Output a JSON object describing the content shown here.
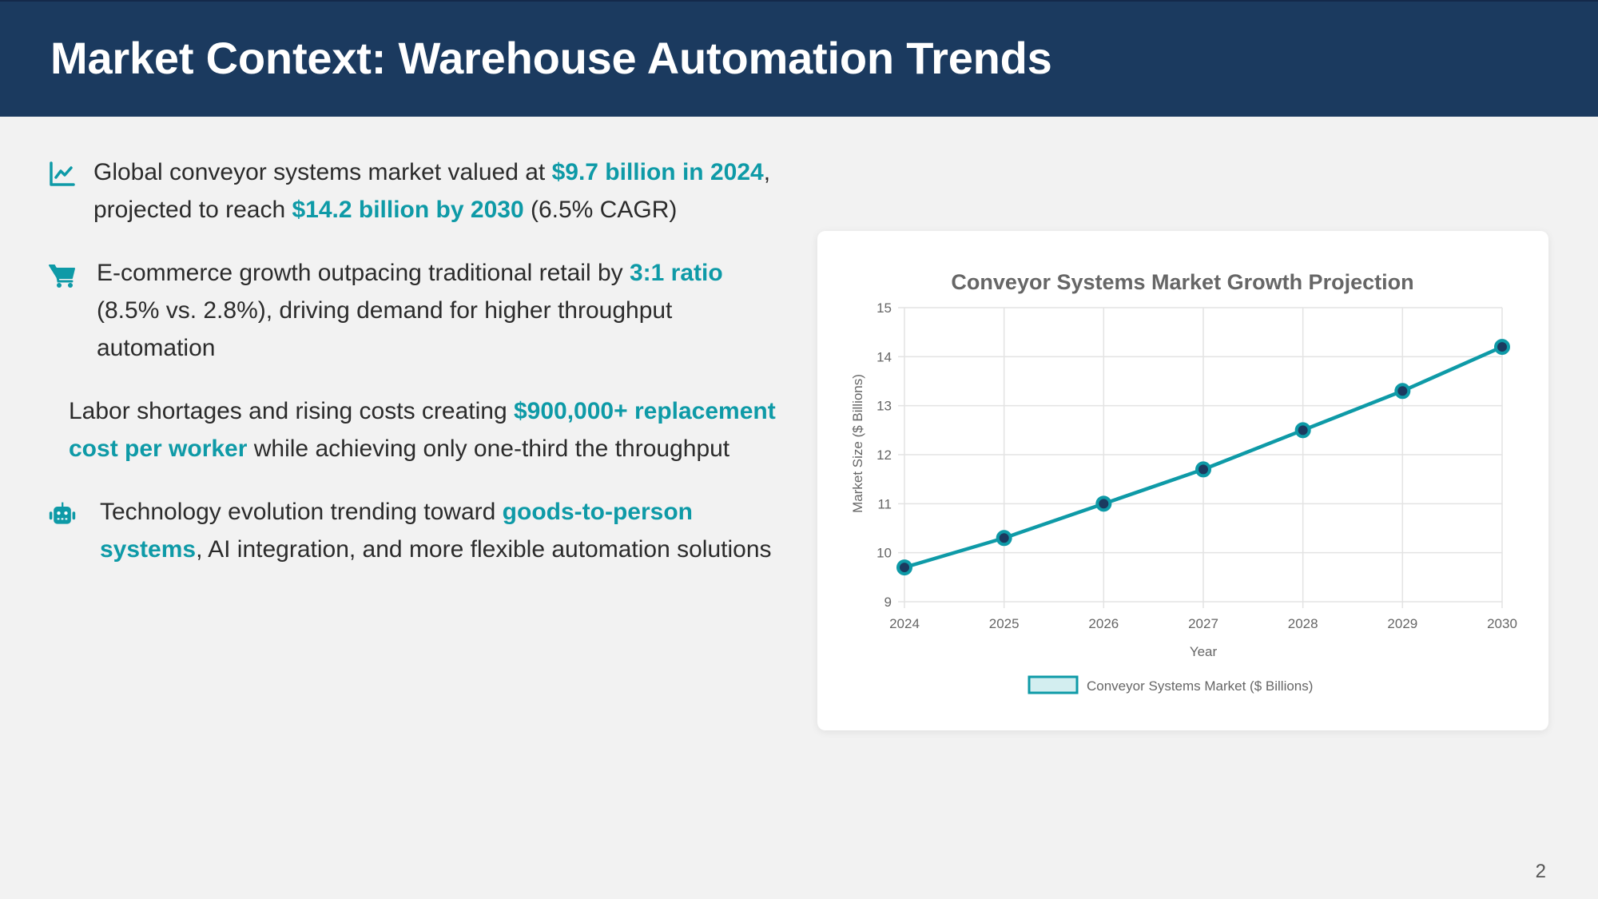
{
  "header": {
    "title": "Market Context: Warehouse Automation Trends"
  },
  "colors": {
    "header_bg": "#1b3a5f",
    "accent": "#0e9aa7",
    "point_fill": "#1b3a5f",
    "legend_fill": "#d3eef0"
  },
  "bullets": [
    {
      "icon": "chart-line-icon",
      "parts": [
        {
          "text": "Global conveyor systems market valued at ",
          "highlight": false
        },
        {
          "text": "$9.7 billion in 2024",
          "highlight": true
        },
        {
          "text": ", projected to reach ",
          "highlight": false
        },
        {
          "text": "$14.2 billion by 2030",
          "highlight": true
        },
        {
          "text": " (6.5% CAGR)",
          "highlight": false
        }
      ]
    },
    {
      "icon": "shopping-cart-icon",
      "parts": [
        {
          "text": "E-commerce growth outpacing traditional retail by ",
          "highlight": false
        },
        {
          "text": "3:1 ratio",
          "highlight": true
        },
        {
          "text": " (8.5% vs. 2.8%), driving demand for higher throughput automation",
          "highlight": false
        }
      ]
    },
    {
      "icon": null,
      "parts": [
        {
          "text": "Labor shortages and rising costs creating ",
          "highlight": false
        },
        {
          "text": "$900,000+ replacement cost per worker",
          "highlight": true
        },
        {
          "text": " while achieving only one-third the throughput",
          "highlight": false
        }
      ]
    },
    {
      "icon": "robot-icon",
      "parts": [
        {
          "text": "Technology evolution trending toward ",
          "highlight": false
        },
        {
          "text": "goods-to-person systems",
          "highlight": true
        },
        {
          "text": ", AI integration, and more flexible automation solutions",
          "highlight": false
        }
      ]
    }
  ],
  "chart_data": {
    "type": "line",
    "title": "Conveyor Systems Market Growth Projection",
    "xlabel": "Year",
    "ylabel": "Market Size ($ Billions)",
    "categories": [
      "2024",
      "2025",
      "2026",
      "2027",
      "2028",
      "2029",
      "2030"
    ],
    "series": [
      {
        "name": "Conveyor Systems Market ($ Billions)",
        "values": [
          9.7,
          10.3,
          11.0,
          11.7,
          12.5,
          13.3,
          14.2
        ]
      }
    ],
    "ylim": [
      9,
      15
    ],
    "yticks": [
      9,
      10,
      11,
      12,
      13,
      14,
      15
    ],
    "grid": true,
    "legend_position": "bottom"
  },
  "footer": {
    "page_number": "2"
  }
}
